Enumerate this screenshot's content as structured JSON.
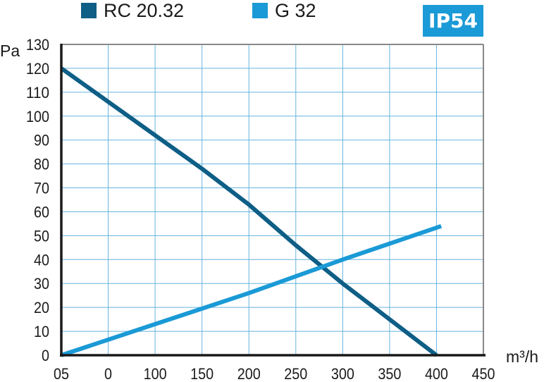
{
  "chart_data": {
    "type": "line",
    "xlabel": "m³/h",
    "ylabel": "Pa",
    "xlim": [
      0,
      450
    ],
    "ylim": [
      0,
      130
    ],
    "x_ticks": [
      "05",
      "0",
      "100",
      "150",
      "200",
      "250",
      "300",
      "350",
      "400",
      "450"
    ],
    "y_ticks": [
      "0",
      "10",
      "20",
      "30",
      "40",
      "50",
      "60",
      "70",
      "80",
      "90",
      "100",
      "110",
      "120",
      "130"
    ],
    "grid": true,
    "legend_position": "top",
    "badge": "IP54",
    "badge_color": "#1a9ad6",
    "series": [
      {
        "name": "RC 20.32",
        "color": "#0e5e86",
        "points": [
          [
            0,
            120
          ],
          [
            50,
            106
          ],
          [
            100,
            92
          ],
          [
            150,
            78
          ],
          [
            200,
            63
          ],
          [
            250,
            46
          ],
          [
            300,
            30
          ],
          [
            350,
            15
          ],
          [
            400,
            0
          ]
        ]
      },
      {
        "name": "G 32",
        "color": "#1a9ad6",
        "points": [
          [
            0,
            0
          ],
          [
            100,
            13
          ],
          [
            200,
            26
          ],
          [
            300,
            40
          ],
          [
            405,
            54
          ]
        ]
      }
    ]
  }
}
